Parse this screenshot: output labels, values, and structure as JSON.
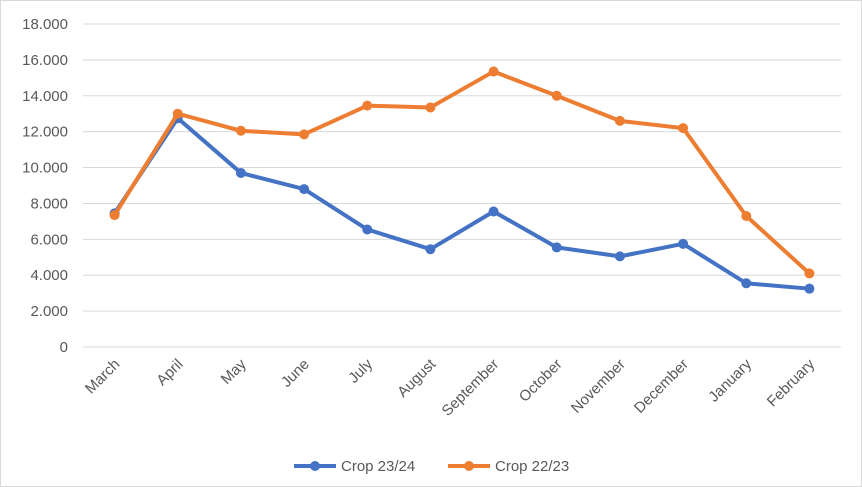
{
  "chart_data": {
    "type": "line",
    "categories": [
      "March",
      "April",
      "May",
      "June",
      "July",
      "August",
      "September",
      "October",
      "November",
      "December",
      "January",
      "February"
    ],
    "series": [
      {
        "name": "Crop 23/24",
        "color": "#4472C4",
        "values": [
          7450,
          12750,
          9700,
          8800,
          6550,
          5450,
          7550,
          5550,
          5050,
          5750,
          3550,
          3250
        ]
      },
      {
        "name": "Crop 22/23",
        "color": "#ED7D31",
        "values": [
          7350,
          13000,
          12050,
          11850,
          13450,
          13350,
          15350,
          14000,
          12600,
          12200,
          7300,
          4100
        ]
      }
    ],
    "ylim": [
      0,
      18000
    ],
    "y_ticks": [
      0,
      2000,
      4000,
      6000,
      8000,
      10000,
      12000,
      14000,
      16000,
      18000
    ],
    "y_tick_labels": [
      "0",
      "2.000",
      "4.000",
      "6.000",
      "8.000",
      "10.000",
      "12.000",
      "14.000",
      "16.000",
      "18.000"
    ],
    "grid": true,
    "legend_position": "bottom",
    "title": "",
    "xlabel": "",
    "ylabel": ""
  }
}
